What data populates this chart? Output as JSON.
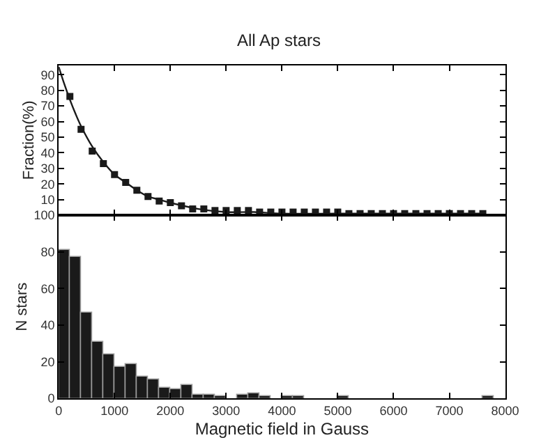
{
  "chart_data": [
    {
      "type": "scatter",
      "title": "All Ap stars",
      "ylabel": "Fraction(%)",
      "xlim": [
        0,
        8000
      ],
      "xticks": [
        {
          "value": 0,
          "label": null
        },
        {
          "value": 1000,
          "label": null
        },
        {
          "value": 2000,
          "label": null
        },
        {
          "value": 3000,
          "label": null
        },
        {
          "value": 4000,
          "label": null
        },
        {
          "value": 5000,
          "label": null
        },
        {
          "value": 6000,
          "label": null
        },
        {
          "value": 7000,
          "label": null
        },
        {
          "value": 8000,
          "label": null
        }
      ],
      "ylim": [
        0,
        96
      ],
      "yticks": [
        {
          "value": 0,
          "label": null
        },
        10,
        20,
        30,
        40,
        50,
        60,
        70,
        80,
        90
      ],
      "tick_labels": "y",
      "series": [
        {
          "type": "scatter",
          "marker": "square",
          "color": "#1a1a1a",
          "x": [
            200,
            400,
            600,
            800,
            1000,
            1200,
            1400,
            1600,
            1800,
            2000,
            2200,
            2400,
            2600,
            2800,
            3000,
            3200,
            3400,
            3600,
            3800,
            4000,
            4200,
            4400,
            4600,
            4800,
            5000,
            5200,
            5400,
            5600,
            5800,
            6000,
            6200,
            6400,
            6600,
            6800,
            7000,
            7200,
            7400,
            7600
          ],
          "values": [
            76,
            55,
            41,
            33,
            26,
            21,
            16,
            12,
            9,
            8,
            6,
            4,
            4,
            3,
            3,
            3,
            3,
            2,
            2,
            2,
            2,
            2,
            2,
            2,
            2,
            1,
            1,
            1,
            1,
            1,
            1,
            1,
            1,
            1,
            1,
            1,
            1,
            1
          ]
        },
        {
          "type": "line",
          "marker": "none",
          "line_style": "solid",
          "color": "#1a1a1a",
          "x": [
            0,
            100,
            200,
            300,
            400,
            600,
            800,
            1000,
            1200,
            1400,
            1600,
            1800,
            2000,
            2500,
            3000,
            3500,
            4000,
            5000,
            6000,
            7000,
            7600
          ],
          "values": [
            95,
            84,
            74,
            65,
            57,
            44,
            34,
            26,
            21,
            16,
            12,
            10,
            8,
            4,
            2,
            2,
            1,
            1,
            1,
            1,
            1
          ]
        }
      ]
    },
    {
      "type": "histogram",
      "xlabel": "Magnetic field in Gauss",
      "ylabel": "N stars",
      "xlim": [
        0,
        8000
      ],
      "xticks": [
        0,
        1000,
        2000,
        3000,
        4000,
        5000,
        6000,
        7000,
        8000
      ],
      "ylim": [
        0,
        100
      ],
      "yticks": [
        0,
        20,
        40,
        60,
        80,
        100
      ],
      "color": "#1a1a1a",
      "bins": [
        0,
        200,
        400,
        600,
        800,
        1000,
        1200,
        1400,
        1600,
        1800,
        2000,
        2200,
        2400,
        2600,
        2800,
        3000,
        3200,
        3400,
        3600,
        3800,
        4000,
        4200,
        4400,
        4600,
        4800,
        5000,
        5200,
        5400,
        5600,
        5800,
        6000,
        6200,
        6400,
        6600,
        6800,
        7000,
        7200,
        7400,
        7600,
        7800,
        8000
      ],
      "values": [
        81,
        77,
        47,
        31,
        24,
        17,
        19,
        12,
        10,
        6,
        5,
        7,
        2,
        2,
        1,
        0,
        2,
        3,
        1,
        0,
        1,
        1,
        0,
        0,
        0,
        1,
        0,
        0,
        0,
        0,
        0,
        0,
        0,
        0,
        0,
        0,
        0,
        0,
        1,
        0
      ]
    }
  ]
}
